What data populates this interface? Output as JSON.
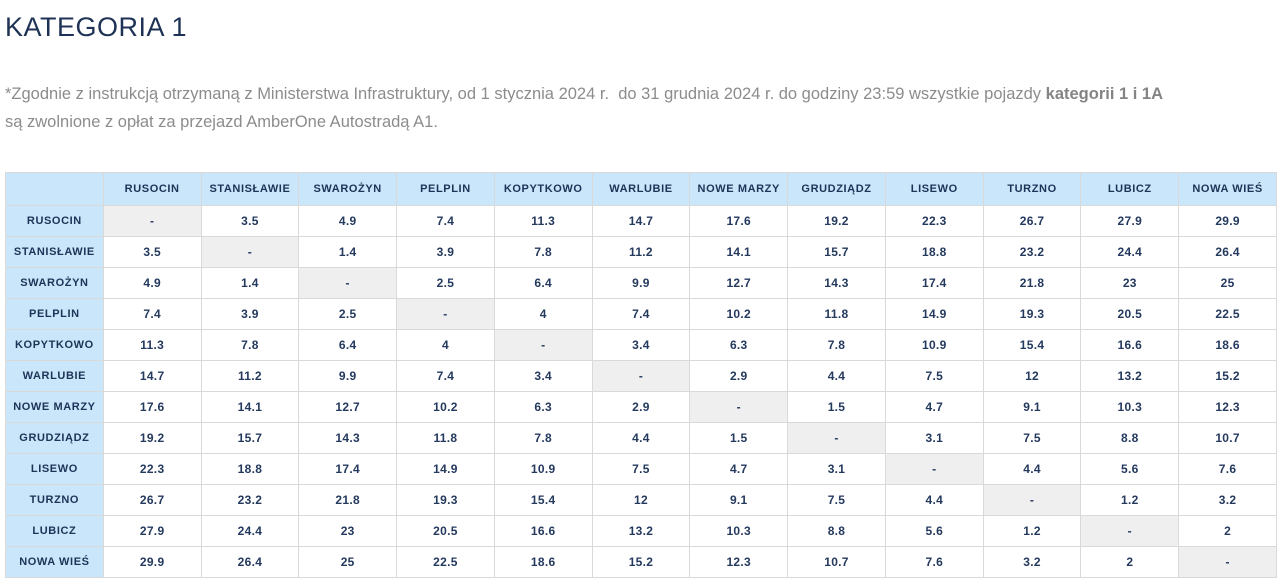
{
  "page": {
    "title": "KATEGORIA 1"
  },
  "note": {
    "part1": "*Zgodnie z instrukcją otrzymaną z Ministerstwa Infrastruktury, od 1 stycznia 2024 r.  do 31 grudnia 2024 r. do godziny 23:59 wszystkie pojazdy ",
    "bold": "kategorii 1 i 1A",
    "part2": " są zwolnione z opłat za przejazd AmberOne Autostradą A1."
  },
  "colors": {
    "title_navy": "#1d3254",
    "note_gray": "#8c8c8c",
    "header_blue": "#c9e6fa",
    "cell_navy": "#24395e",
    "diagonal_gray": "#efefef",
    "border_gray": "#d9d9d9"
  },
  "chart_data": {
    "type": "table",
    "title": "KATEGORIA 1",
    "corner_label": "",
    "columns": [
      "RUSOCIN",
      "STANISŁAWIE",
      "SWAROŻYN",
      "PELPLIN",
      "KOPYTKOWO",
      "WARLUBIE",
      "NOWE MARZY",
      "GRUDZIĄDZ",
      "LISEWO",
      "TURZNO",
      "LUBICZ",
      "NOWA WIEŚ"
    ],
    "rows": [
      {
        "label": "RUSOCIN",
        "values": [
          "-",
          "3.5",
          "4.9",
          "7.4",
          "11.3",
          "14.7",
          "17.6",
          "19.2",
          "22.3",
          "26.7",
          "27.9",
          "29.9"
        ]
      },
      {
        "label": "STANISŁAWIE",
        "values": [
          "3.5",
          "-",
          "1.4",
          "3.9",
          "7.8",
          "11.2",
          "14.1",
          "15.7",
          "18.8",
          "23.2",
          "24.4",
          "26.4"
        ]
      },
      {
        "label": "SWAROŻYN",
        "values": [
          "4.9",
          "1.4",
          "-",
          "2.5",
          "6.4",
          "9.9",
          "12.7",
          "14.3",
          "17.4",
          "21.8",
          "23",
          "25"
        ]
      },
      {
        "label": "PELPLIN",
        "values": [
          "7.4",
          "3.9",
          "2.5",
          "-",
          "4",
          "7.4",
          "10.2",
          "11.8",
          "14.9",
          "19.3",
          "20.5",
          "22.5"
        ]
      },
      {
        "label": "KOPYTKOWO",
        "values": [
          "11.3",
          "7.8",
          "6.4",
          "4",
          "-",
          "3.4",
          "6.3",
          "7.8",
          "10.9",
          "15.4",
          "16.6",
          "18.6"
        ]
      },
      {
        "label": "WARLUBIE",
        "values": [
          "14.7",
          "11.2",
          "9.9",
          "7.4",
          "3.4",
          "-",
          "2.9",
          "4.4",
          "7.5",
          "12",
          "13.2",
          "15.2"
        ]
      },
      {
        "label": "NOWE MARZY",
        "values": [
          "17.6",
          "14.1",
          "12.7",
          "10.2",
          "6.3",
          "2.9",
          "-",
          "1.5",
          "4.7",
          "9.1",
          "10.3",
          "12.3"
        ]
      },
      {
        "label": "GRUDZIĄDZ",
        "values": [
          "19.2",
          "15.7",
          "14.3",
          "11.8",
          "7.8",
          "4.4",
          "1.5",
          "-",
          "3.1",
          "7.5",
          "8.8",
          "10.7"
        ]
      },
      {
        "label": "LISEWO",
        "values": [
          "22.3",
          "18.8",
          "17.4",
          "14.9",
          "10.9",
          "7.5",
          "4.7",
          "3.1",
          "-",
          "4.4",
          "5.6",
          "7.6"
        ]
      },
      {
        "label": "TURZNO",
        "values": [
          "26.7",
          "23.2",
          "21.8",
          "19.3",
          "15.4",
          "12",
          "9.1",
          "7.5",
          "4.4",
          "-",
          "1.2",
          "3.2"
        ]
      },
      {
        "label": "LUBICZ",
        "values": [
          "27.9",
          "24.4",
          "23",
          "20.5",
          "16.6",
          "13.2",
          "10.3",
          "8.8",
          "5.6",
          "1.2",
          "-",
          "2"
        ]
      },
      {
        "label": "NOWA WIEŚ",
        "values": [
          "29.9",
          "26.4",
          "25",
          "22.5",
          "18.6",
          "15.2",
          "12.3",
          "10.7",
          "7.6",
          "3.2",
          "2",
          "-"
        ]
      }
    ]
  }
}
